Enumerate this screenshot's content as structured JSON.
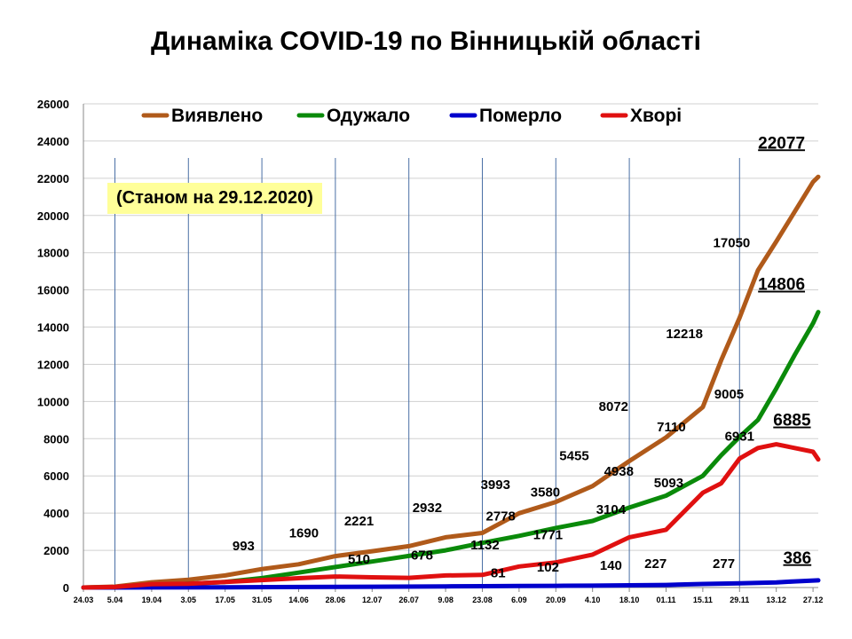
{
  "title": "Динаміка COVID-19 по Вінницькій області",
  "date_note": "(Станом на 29.12.2020)",
  "chart_data": {
    "type": "line",
    "title": "Динаміка COVID-19 по Вінницькій області",
    "ylim": [
      0,
      26000
    ],
    "yticks": [
      0,
      2000,
      4000,
      6000,
      8000,
      10000,
      12000,
      14000,
      16000,
      18000,
      20000,
      22000,
      24000,
      26000
    ],
    "x_start": "2020-03-24",
    "x_end": "2020-12-29",
    "xtick_labels": [
      "24.03",
      "5.04",
      "19.04",
      "3.05",
      "17.05",
      "31.05",
      "14.06",
      "28.06",
      "12.07",
      "26.07",
      "9.08",
      "23.08",
      "6.09",
      "20.09",
      "4.10",
      "18.10",
      "01.11",
      "15.11",
      "29.11",
      "13.12",
      "27.12"
    ],
    "xtick_dates": [
      "2020-03-24",
      "2020-04-05",
      "2020-04-19",
      "2020-05-03",
      "2020-05-17",
      "2020-05-31",
      "2020-06-14",
      "2020-06-28",
      "2020-07-12",
      "2020-07-26",
      "2020-08-09",
      "2020-08-23",
      "2020-09-06",
      "2020-09-20",
      "2020-10-04",
      "2020-10-18",
      "2020-11-01",
      "2020-11-15",
      "2020-11-29",
      "2020-12-13",
      "2020-12-27"
    ],
    "vgrid_dates": [
      "2020-04-05",
      "2020-05-03",
      "2020-05-31",
      "2020-06-28",
      "2020-07-26",
      "2020-08-23",
      "2020-09-20",
      "2020-10-18",
      "2020-11-29"
    ],
    "grid": "horizontal and vertical",
    "legend_position": "top",
    "series": [
      {
        "name": "Виявлено",
        "color": "#b05a1a",
        "points": [
          [
            "2020-03-24",
            0
          ],
          [
            "2020-04-05",
            50
          ],
          [
            "2020-04-19",
            280
          ],
          [
            "2020-05-03",
            420
          ],
          [
            "2020-05-17",
            650
          ],
          [
            "2020-05-31",
            993
          ],
          [
            "2020-06-14",
            1250
          ],
          [
            "2020-06-28",
            1690
          ],
          [
            "2020-07-12",
            1950
          ],
          [
            "2020-07-26",
            2221
          ],
          [
            "2020-08-09",
            2700
          ],
          [
            "2020-08-23",
            2932
          ],
          [
            "2020-09-06",
            3993
          ],
          [
            "2020-09-20",
            4600
          ],
          [
            "2020-10-04",
            5455
          ],
          [
            "2020-10-18",
            6800
          ],
          [
            "2020-11-01",
            8072
          ],
          [
            "2020-11-15",
            9700
          ],
          [
            "2020-11-22",
            12218
          ],
          [
            "2020-11-29",
            14500
          ],
          [
            "2020-12-06",
            17050
          ],
          [
            "2020-12-13",
            18600
          ],
          [
            "2020-12-20",
            20200
          ],
          [
            "2020-12-27",
            21800
          ],
          [
            "2020-12-29",
            22077
          ]
        ]
      },
      {
        "name": "Одужало",
        "color": "#0a8a0a",
        "points": [
          [
            "2020-03-24",
            0
          ],
          [
            "2020-04-05",
            20
          ],
          [
            "2020-04-19",
            100
          ],
          [
            "2020-05-03",
            200
          ],
          [
            "2020-05-17",
            300
          ],
          [
            "2020-05-31",
            510
          ],
          [
            "2020-06-14",
            800
          ],
          [
            "2020-06-28",
            1100
          ],
          [
            "2020-07-12",
            1400
          ],
          [
            "2020-07-26",
            1700
          ],
          [
            "2020-08-09",
            2000
          ],
          [
            "2020-08-23",
            2400
          ],
          [
            "2020-09-06",
            2778
          ],
          [
            "2020-09-20",
            3200
          ],
          [
            "2020-10-04",
            3580
          ],
          [
            "2020-10-18",
            4300
          ],
          [
            "2020-11-01",
            4938
          ],
          [
            "2020-11-15",
            6000
          ],
          [
            "2020-11-22",
            7110
          ],
          [
            "2020-11-29",
            8100
          ],
          [
            "2020-12-06",
            9005
          ],
          [
            "2020-12-13",
            10700
          ],
          [
            "2020-12-20",
            12500
          ],
          [
            "2020-12-27",
            14200
          ],
          [
            "2020-12-29",
            14806
          ]
        ]
      },
      {
        "name": "Померло",
        "color": "#0000cc",
        "points": [
          [
            "2020-03-24",
            0
          ],
          [
            "2020-04-19",
            5
          ],
          [
            "2020-05-17",
            15
          ],
          [
            "2020-06-14",
            30
          ],
          [
            "2020-07-12",
            45
          ],
          [
            "2020-08-09",
            60
          ],
          [
            "2020-08-23",
            70
          ],
          [
            "2020-09-06",
            81
          ],
          [
            "2020-09-20",
            90
          ],
          [
            "2020-10-04",
            102
          ],
          [
            "2020-10-18",
            120
          ],
          [
            "2020-11-01",
            140
          ],
          [
            "2020-11-15",
            190
          ],
          [
            "2020-11-29",
            227
          ],
          [
            "2020-12-13",
            277
          ],
          [
            "2020-12-20",
            330
          ],
          [
            "2020-12-29",
            386
          ]
        ]
      },
      {
        "name": "Хворі",
        "color": "#e01010",
        "points": [
          [
            "2020-03-24",
            0
          ],
          [
            "2020-04-05",
            30
          ],
          [
            "2020-04-19",
            180
          ],
          [
            "2020-05-03",
            200
          ],
          [
            "2020-05-17",
            300
          ],
          [
            "2020-05-31",
            400
          ],
          [
            "2020-06-14",
            500
          ],
          [
            "2020-06-28",
            590
          ],
          [
            "2020-07-12",
            550
          ],
          [
            "2020-07-26",
            520
          ],
          [
            "2020-08-09",
            650
          ],
          [
            "2020-08-23",
            678
          ],
          [
            "2020-09-06",
            1132
          ],
          [
            "2020-09-20",
            1350
          ],
          [
            "2020-10-04",
            1771
          ],
          [
            "2020-10-18",
            2700
          ],
          [
            "2020-11-01",
            3104
          ],
          [
            "2020-11-15",
            5093
          ],
          [
            "2020-11-22",
            5600
          ],
          [
            "2020-11-29",
            6931
          ],
          [
            "2020-12-06",
            7500
          ],
          [
            "2020-12-13",
            7700
          ],
          [
            "2020-12-20",
            7500
          ],
          [
            "2020-12-27",
            7300
          ],
          [
            "2020-12-29",
            6885
          ]
        ]
      }
    ],
    "annotations": [
      {
        "text": "22077",
        "date": "2020-12-15",
        "y": 23600,
        "color": "#000000",
        "underline": true,
        "size": 19
      },
      {
        "text": "14806",
        "date": "2020-12-15",
        "y": 16000,
        "color": "#000000",
        "underline": true,
        "size": 19
      },
      {
        "text": "6885",
        "date": "2020-12-19",
        "y": 8700,
        "color": "#000000",
        "underline": true,
        "size": 19
      },
      {
        "text": "386",
        "date": "2020-12-21",
        "y": 1300,
        "color": "#000000",
        "underline": true,
        "size": 19
      },
      {
        "text": "17050",
        "date": "2020-11-26",
        "y": 18300,
        "color": "#000000",
        "size": 15
      },
      {
        "text": "12218",
        "date": "2020-11-08",
        "y": 13400,
        "color": "#000000",
        "size": 15
      },
      {
        "text": "9005",
        "date": "2020-11-25",
        "y": 10150,
        "color": "#000000",
        "size": 15
      },
      {
        "text": "8072",
        "date": "2020-10-12",
        "y": 9500,
        "color": "#000000",
        "size": 15
      },
      {
        "text": "7110",
        "date": "2020-11-03",
        "y": 8400,
        "color": "#000000",
        "size": 15
      },
      {
        "text": "6931",
        "date": "2020-11-29",
        "y": 7900,
        "color": "#000000",
        "size": 15
      },
      {
        "text": "5455",
        "date": "2020-09-27",
        "y": 6850,
        "color": "#000000",
        "size": 15
      },
      {
        "text": "4938",
        "date": "2020-10-14",
        "y": 6000,
        "color": "#000000",
        "size": 15
      },
      {
        "text": "5093",
        "date": "2020-11-02",
        "y": 5400,
        "color": "#000000",
        "size": 15
      },
      {
        "text": "3993",
        "date": "2020-08-28",
        "y": 5300,
        "color": "#000000",
        "size": 15
      },
      {
        "text": "3580",
        "date": "2020-09-16",
        "y": 4900,
        "color": "#000000",
        "size": 15
      },
      {
        "text": "3104",
        "date": "2020-10-11",
        "y": 3950,
        "color": "#000000",
        "size": 15
      },
      {
        "text": "2778",
        "date": "2020-08-30",
        "y": 3600,
        "color": "#000000",
        "size": 15
      },
      {
        "text": "2932",
        "date": "2020-08-02",
        "y": 4050,
        "color": "#000000",
        "size": 15
      },
      {
        "text": "2221",
        "date": "2020-07-07",
        "y": 3350,
        "color": "#000000",
        "size": 15
      },
      {
        "text": "1690",
        "date": "2020-06-16",
        "y": 2700,
        "color": "#000000",
        "size": 15
      },
      {
        "text": "993",
        "date": "2020-05-24",
        "y": 2000,
        "color": "#000000",
        "size": 15
      },
      {
        "text": "1771",
        "date": "2020-09-17",
        "y": 2600,
        "color": "#000000",
        "size": 15
      },
      {
        "text": "1132",
        "date": "2020-08-24",
        "y": 2050,
        "color": "#000000",
        "size": 15
      },
      {
        "text": "678",
        "date": "2020-07-31",
        "y": 1500,
        "color": "#000000",
        "size": 15
      },
      {
        "text": "510",
        "date": "2020-07-07",
        "y": 1300,
        "color": "#000000",
        "size": 15
      },
      {
        "text": "227",
        "date": "2020-10-28",
        "y": 1050,
        "color": "#000000",
        "size": 15
      },
      {
        "text": "277",
        "date": "2020-11-23",
        "y": 1050,
        "color": "#000000",
        "size": 15
      },
      {
        "text": "140",
        "date": "2020-10-11",
        "y": 950,
        "color": "#000000",
        "size": 15
      },
      {
        "text": "102",
        "date": "2020-09-17",
        "y": 850,
        "color": "#000000",
        "size": 15
      },
      {
        "text": "81",
        "date": "2020-08-29",
        "y": 550,
        "color": "#000000",
        "size": 15
      }
    ]
  }
}
